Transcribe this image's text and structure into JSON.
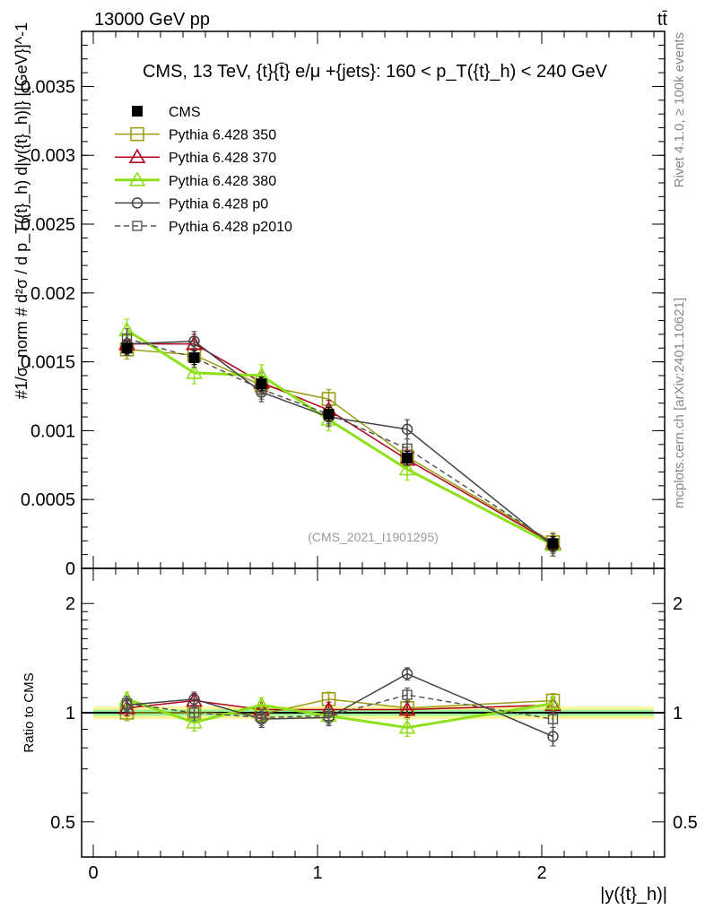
{
  "header": {
    "left": "13000 GeV pp",
    "right": "tt̄"
  },
  "side_labels": {
    "top": "Rivet 4.1.0, ≥ 100k events",
    "bottom": "mcplots.cern.ch [arXiv:2401.10621]"
  },
  "chart_data": [
    {
      "type": "line",
      "title": "CMS, 13 TeV, {t}{t̄} e/μ +{jets}: 160 <  p_T({t}_h) < 240 GeV",
      "watermark": "(CMS_2021_I1901295)",
      "ylabel": "#1/σ_norm # d²σ / d p_T({t}_h) d|y({t}_h)|} [{GeV}]^-1",
      "xlabel": "|y({t}_h)|",
      "xlim": [
        -0.05,
        2.55
      ],
      "ylim": [
        0,
        0.0039
      ],
      "yticks": [
        "0",
        "0.0005",
        "0.001",
        "0.0015",
        "0.002",
        "0.0025",
        "0.003",
        "0.0035"
      ],
      "x": [
        0.15,
        0.45,
        0.75,
        1.05,
        1.4,
        2.05
      ],
      "series": [
        {
          "name": "CMS",
          "color": "#000000",
          "marker": "filled-square",
          "values": [
            0.0016,
            0.00153,
            0.00134,
            0.00112,
            0.0008,
            0.00018
          ],
          "err": 5e-05
        },
        {
          "name": "Pythia 6.428 350",
          "color": "#9c9c14",
          "marker": "open-square",
          "values": [
            0.00159,
            0.00155,
            0.00133,
            0.00123,
            0.00081,
            0.00019
          ],
          "err": 7e-05
        },
        {
          "name": "Pythia 6.428 370",
          "color": "#b0001e",
          "marker": "open-triangle",
          "values": [
            0.00163,
            0.00163,
            0.00135,
            0.00115,
            0.00079,
            0.00018
          ],
          "err": 7e-05
        },
        {
          "name": "Pythia 6.428 380",
          "color": "#8ee01a",
          "marker": "open-triangle",
          "values": [
            0.00173,
            0.00142,
            0.0014,
            0.00108,
            0.00072,
            0.00017
          ],
          "err": 8e-05
        },
        {
          "name": "Pythia 6.428 p0",
          "color": "#444444",
          "marker": "open-circle",
          "values": [
            0.00163,
            0.00165,
            0.00128,
            0.0011,
            0.00101,
            0.00016
          ],
          "err": 7e-05
        },
        {
          "name": "Pythia 6.428 p2010",
          "color": "#555555",
          "marker": "open-square-small",
          "dashed": true,
          "values": [
            0.00167,
            0.00153,
            0.0013,
            0.00112,
            0.00087,
            0.00018
          ],
          "err": 7e-05
        }
      ]
    },
    {
      "type": "line",
      "ylabel": "Ratio to CMS",
      "yscale": "log",
      "ylim": [
        0.4,
        2.5
      ],
      "yticks": [
        "0.5",
        "1",
        "2"
      ],
      "xticks": [
        "0",
        "1",
        "2"
      ],
      "band_yellow": 0.04,
      "band_green": 0.02,
      "x": [
        0.15,
        0.45,
        0.75,
        1.05,
        1.4,
        2.05
      ],
      "series": [
        {
          "name": "Pythia 6.428 350",
          "values": [
            1.0,
            1.0,
            0.99,
            1.09,
            1.03,
            1.08
          ],
          "err": 0.05
        },
        {
          "name": "Pythia 6.428 370",
          "values": [
            1.03,
            1.08,
            1.02,
            1.02,
            1.02,
            1.05
          ],
          "err": 0.05
        },
        {
          "name": "Pythia 6.428 380",
          "values": [
            1.09,
            0.94,
            1.05,
            0.98,
            0.91,
            1.06
          ],
          "err": 0.05
        },
        {
          "name": "Pythia 6.428 p0",
          "values": [
            1.05,
            1.09,
            0.96,
            0.97,
            1.28,
            0.86
          ],
          "err": 0.05
        },
        {
          "name": "Pythia 6.428 p2010",
          "values": [
            1.06,
            1.0,
            0.97,
            0.98,
            1.12,
            0.96
          ],
          "err": 0.05
        }
      ]
    }
  ]
}
